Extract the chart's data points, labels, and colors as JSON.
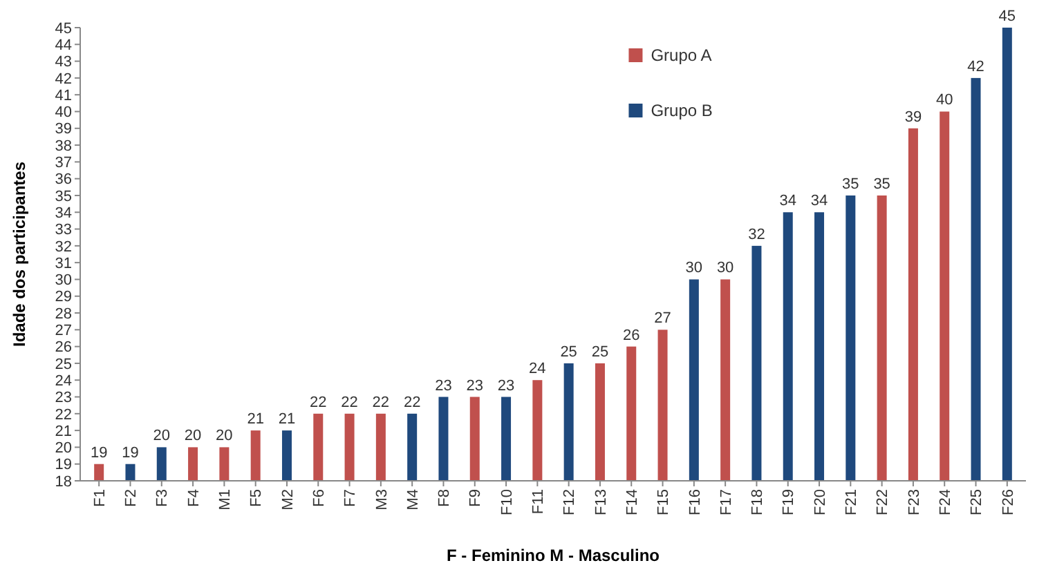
{
  "chart_data": {
    "type": "bar",
    "xlabel": "F - Feminino M - Masculino",
    "ylabel": "Idade dos participantes",
    "categories": [
      "F1",
      "F2",
      "F3",
      "F4",
      "M1",
      "F5",
      "M2",
      "F6",
      "F7",
      "M3",
      "M4",
      "F8",
      "F9",
      "F10",
      "F11",
      "F12",
      "F13",
      "F14",
      "F15",
      "F16",
      "F17",
      "F18",
      "F19",
      "F20",
      "F21",
      "F22",
      "F23",
      "F24",
      "F25",
      "F26"
    ],
    "series": [
      {
        "name": "Grupo A",
        "color": "#c0504d",
        "values": [
          19,
          null,
          null,
          20,
          20,
          21,
          null,
          22,
          22,
          22,
          null,
          null,
          23,
          null,
          24,
          null,
          25,
          26,
          27,
          null,
          30,
          null,
          null,
          null,
          null,
          35,
          39,
          40,
          null,
          null
        ]
      },
      {
        "name": "Grupo B",
        "color": "#1f497d",
        "values": [
          null,
          19,
          20,
          null,
          null,
          null,
          21,
          null,
          null,
          null,
          22,
          23,
          null,
          23,
          null,
          25,
          null,
          null,
          null,
          30,
          null,
          32,
          34,
          34,
          35,
          null,
          null,
          null,
          42,
          45
        ]
      }
    ],
    "stacked": true,
    "data_labels": true,
    "legend": "top",
    "grid": false,
    "ylim": [
      18,
      45
    ],
    "yticks": [
      18,
      19,
      20,
      21,
      22,
      23,
      24,
      25,
      26,
      27,
      28,
      29,
      30,
      31,
      32,
      33,
      34,
      35,
      36,
      37,
      38,
      39,
      40,
      41,
      42,
      43,
      44,
      45
    ]
  }
}
